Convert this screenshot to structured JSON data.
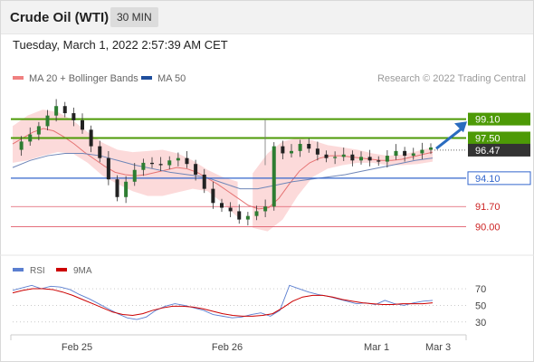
{
  "header": {
    "title": "Crude Oil (WTI)",
    "timeframe": "30 MIN",
    "timestamp": "Tuesday, March 1, 2022 2:57:39 AM CET"
  },
  "legend": [
    {
      "label": "MA 20 + Bollinger Bands",
      "color": "#f08080"
    },
    {
      "label": "MA 50",
      "color": "#1f4e9c"
    }
  ],
  "copyright": "Research © 2022 Trading Central",
  "colors": {
    "resistance": "#4d9a06",
    "support": "#3366cc",
    "pivot_dark": "#333333",
    "red_level": "#e05a6a",
    "bullish": "#2e7d32",
    "bearish": "#222222",
    "band_fill": "#fbd3d3",
    "arrow": "#2a6cbf"
  },
  "chart_data": [
    {
      "type": "candlestick",
      "ylim": [
        88.5,
        100.6
      ],
      "x_ticks": [
        "Feb 25",
        "Feb 26",
        "Mar 1",
        "Mar 3"
      ],
      "levels": [
        {
          "value": 99.1,
          "label": "99.10",
          "kind": "resistance"
        },
        {
          "value": 97.5,
          "label": "97.50",
          "kind": "resistance"
        },
        {
          "value": 96.47,
          "label": "96.47",
          "kind": "last"
        },
        {
          "value": 94.1,
          "label": "94.10",
          "kind": "support"
        },
        {
          "value": 91.7,
          "label": "91.70",
          "kind": "red"
        },
        {
          "value": 90.0,
          "label": "90.00",
          "kind": "red"
        }
      ],
      "bias": "up",
      "close_path": [
        96.5,
        97.2,
        97.8,
        98.5,
        99.4,
        100.2,
        99.6,
        99.0,
        98.2,
        96.8,
        95.8,
        94.0,
        92.5,
        93.8,
        94.8,
        95.4,
        95.3,
        95.2,
        95.6,
        95.8,
        95.3,
        94.4,
        93.2,
        92.0,
        91.6,
        91.3,
        90.6,
        90.9,
        91.3,
        91.7,
        96.8,
        96.2,
        96.4,
        97.0,
        96.6,
        96.1,
        95.8,
        95.9,
        96.1,
        95.6,
        95.9,
        95.6,
        95.5,
        96.0,
        96.4,
        96.0,
        96.2,
        96.5,
        96.7
      ],
      "ma20_path": [
        97.0,
        97.5,
        98.0,
        98.3,
        98.1,
        97.6,
        97.0,
        96.3,
        95.7,
        95.1,
        94.6,
        94.4,
        94.3,
        94.4,
        94.6,
        94.8,
        95.0,
        94.9,
        94.6,
        94.1,
        93.6,
        93.0,
        92.4,
        91.8,
        91.5,
        91.6,
        92.4,
        93.6,
        94.7,
        95.4,
        95.8,
        96.0,
        96.0,
        95.9,
        95.8,
        95.7,
        95.6,
        95.6,
        95.7,
        95.9,
        96.1,
        96.3
      ],
      "band_upper_path": [
        98.5,
        99.4,
        99.9,
        99.7,
        99.0,
        98.0,
        97.1,
        96.5,
        96.3,
        96.4,
        96.5,
        96.2,
        95.6,
        94.8,
        94.2,
        93.8,
        94.5,
        96.2,
        97.2,
        97.5,
        97.3,
        96.9,
        96.7,
        96.5,
        96.2,
        96.0,
        96.1,
        96.4,
        96.7
      ],
      "band_lower_path": [
        95.4,
        95.6,
        96.0,
        96.3,
        96.2,
        95.4,
        94.3,
        93.6,
        93.0,
        92.6,
        92.6,
        92.9,
        93.2,
        93.0,
        92.0,
        90.8,
        89.9,
        89.6,
        90.6,
        92.6,
        94.2,
        94.9,
        95.2,
        95.4,
        95.4,
        95.2,
        95.2,
        95.3,
        95.5
      ],
      "ma50_path": [
        95.0,
        95.6,
        96.0,
        96.2,
        96.2,
        96.0,
        95.6,
        95.2,
        94.9,
        94.6,
        94.4,
        94.2,
        93.7,
        93.2,
        93.2,
        93.5,
        93.8,
        94.0,
        94.2,
        94.4,
        94.7,
        95.0,
        95.3,
        95.6,
        95.8
      ]
    },
    {
      "type": "line",
      "legend": [
        {
          "label": "RSI",
          "color": "#5b7fd0"
        },
        {
          "label": "9MA",
          "color": "#cc0000"
        }
      ],
      "ylim": [
        20,
        82
      ],
      "y_ticks": [
        {
          "value": 70,
          "label": "70"
        },
        {
          "value": 50,
          "label": "50"
        },
        {
          "value": 30,
          "label": "30"
        }
      ],
      "series": [
        {
          "name": "RSI",
          "values": [
            68,
            71,
            74,
            70,
            73,
            72,
            69,
            63,
            58,
            52,
            46,
            40,
            35,
            33,
            36,
            44,
            49,
            52,
            50,
            47,
            44,
            39,
            37,
            35,
            36,
            39,
            41,
            37,
            44,
            74,
            70,
            66,
            63,
            61,
            58,
            55,
            52,
            53,
            51,
            56,
            52,
            50,
            53,
            55,
            56
          ]
        },
        {
          "name": "9MA",
          "values": [
            65,
            68,
            70,
            70,
            69,
            66,
            62,
            57,
            52,
            47,
            42,
            39,
            38,
            40,
            44,
            47,
            49,
            49,
            48,
            46,
            43,
            40,
            38,
            37,
            37,
            38,
            40,
            47,
            55,
            60,
            62,
            62,
            60,
            57,
            55,
            53,
            52,
            51,
            51,
            52,
            52,
            52,
            53
          ]
        }
      ]
    }
  ]
}
